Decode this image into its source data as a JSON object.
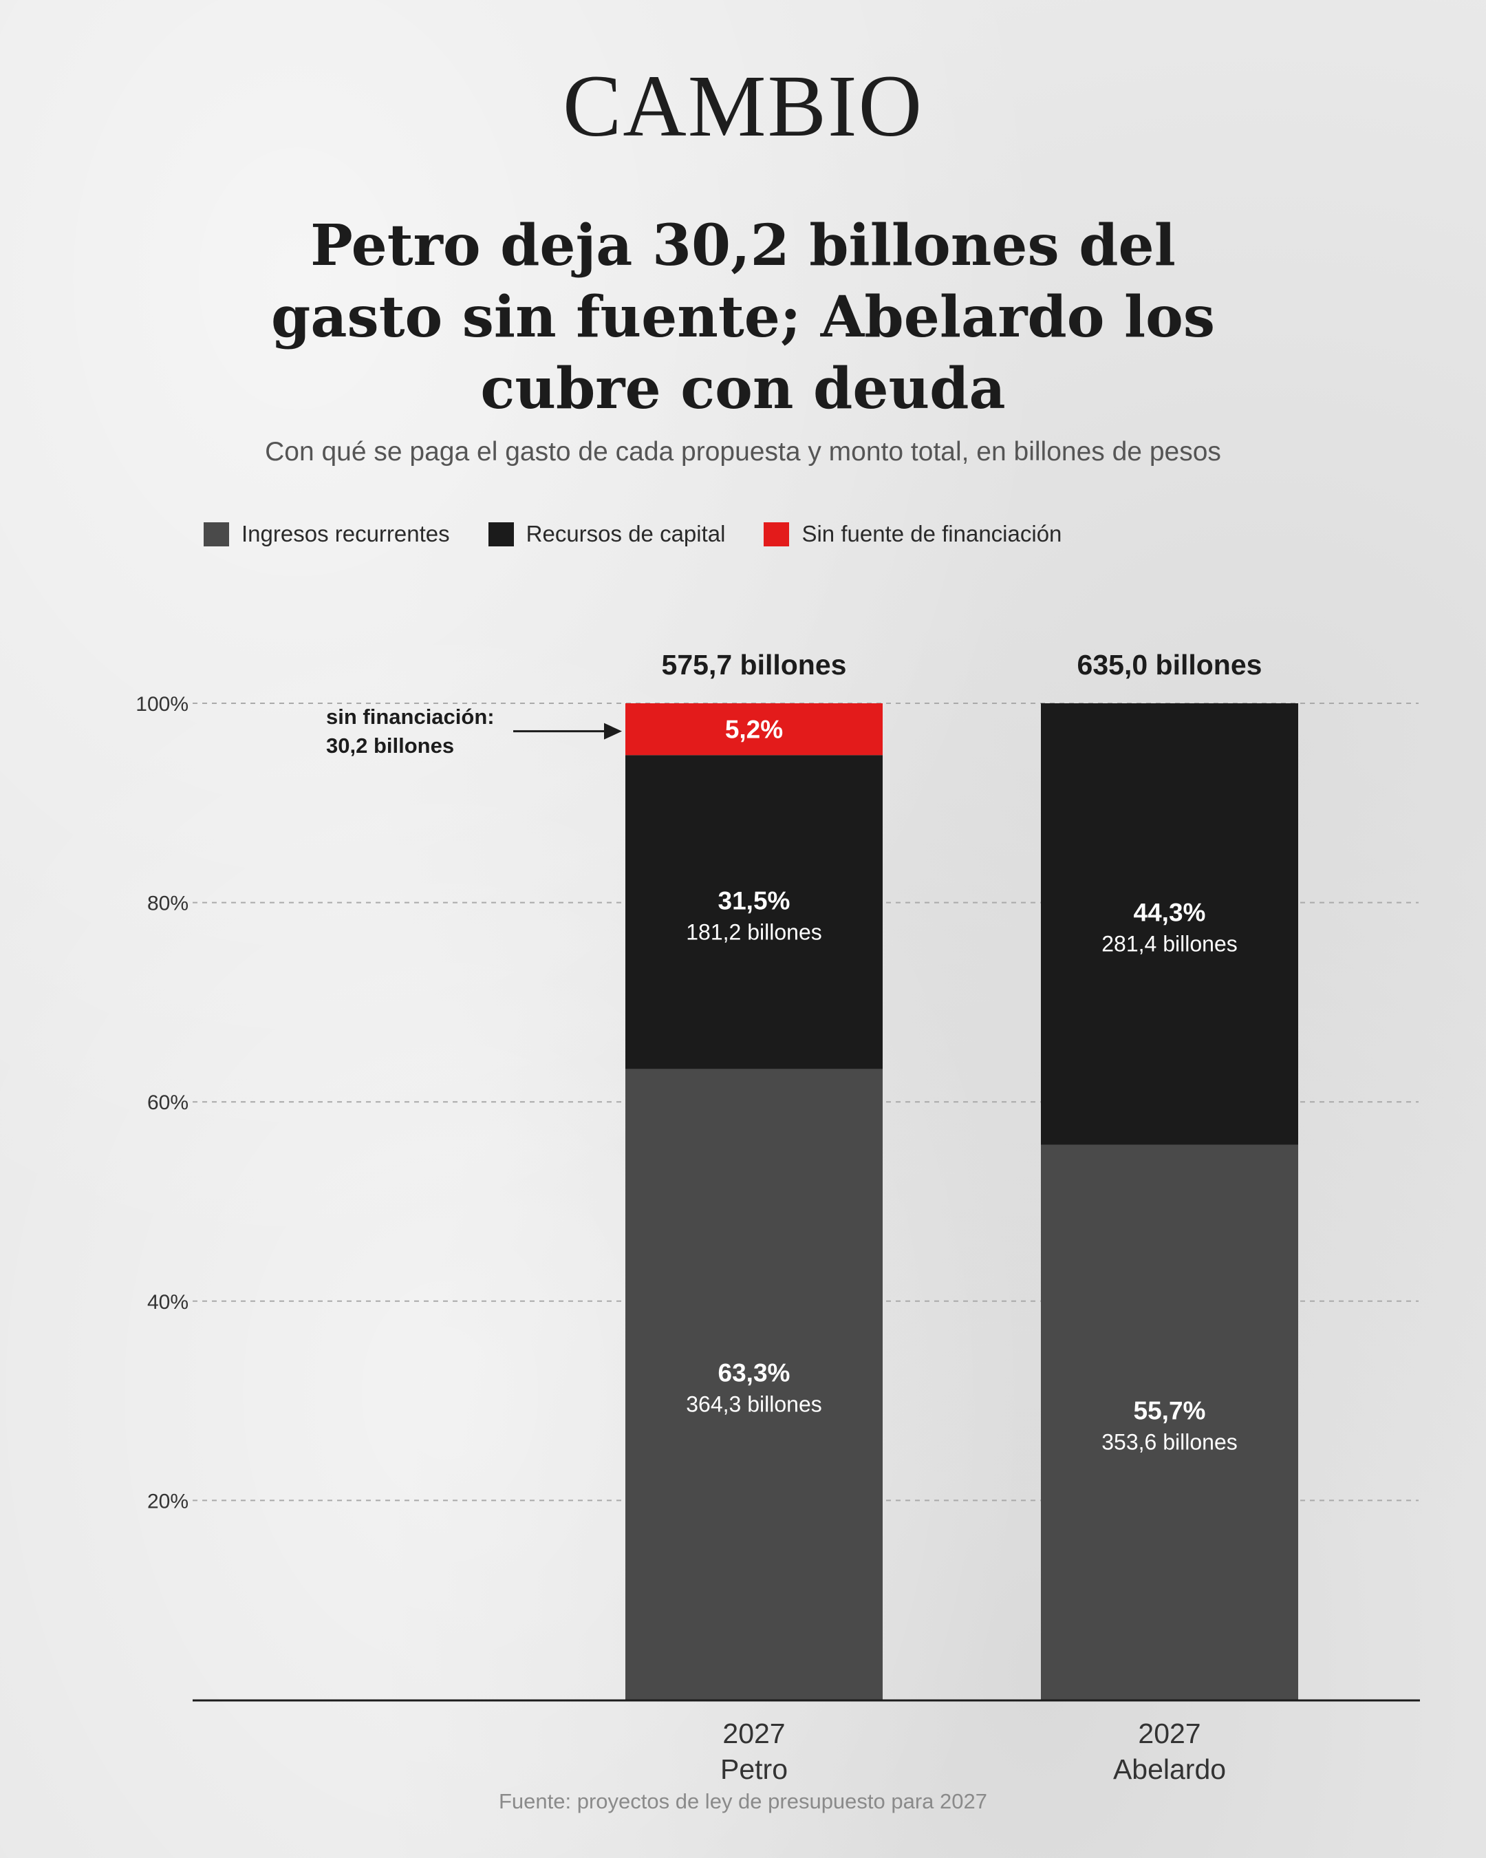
{
  "brand": {
    "logo_text": "CAMBIO"
  },
  "headline": {
    "title": "Petro deja 30,2 billones del gasto sin fuente; Abelardo los cubre con deuda",
    "subtitle": "Con qué se paga el gasto de cada propuesta y monto total, en billones de pesos"
  },
  "source": "Fuente: proyectos de ley de presupuesto para 2027",
  "colors": {
    "ingresos": "#4a4a4a",
    "capital": "#1b1b1b",
    "sin_fuente": "#e31b1b",
    "grid": "#aaaaaa",
    "axis": "#1c1c1c"
  },
  "chart_data": {
    "type": "bar",
    "stacked": true,
    "normalized_percent": true,
    "categories": [
      {
        "line1": "2027",
        "line2": "Petro"
      },
      {
        "line1": "2027",
        "line2": "Abelardo"
      }
    ],
    "totals": [
      "575,7 billones",
      "635,0 billones"
    ],
    "ylim": [
      0,
      100
    ],
    "yticks": [
      20,
      40,
      60,
      80,
      100
    ],
    "ytick_labels": [
      "20%",
      "40%",
      "60%",
      "80%",
      "100%"
    ],
    "grid": true,
    "legend_position": "top-left",
    "series": [
      {
        "name": "Ingresos recurrentes",
        "color_key": "ingresos",
        "values": [
          63.3,
          55.7
        ],
        "amounts": [
          364.3,
          353.6
        ],
        "pct_labels": [
          "63,3%",
          "55,7%"
        ],
        "amount_labels": [
          "364,3 billones",
          "353,6 billones"
        ]
      },
      {
        "name": "Recursos de capital",
        "color_key": "capital",
        "values": [
          31.5,
          44.3
        ],
        "amounts": [
          181.2,
          281.4
        ],
        "pct_labels": [
          "31,5%",
          "44,3%"
        ],
        "amount_labels": [
          "181,2 billones",
          "281,4 billones"
        ]
      },
      {
        "name": "Sin fuente de financiación",
        "color_key": "sin_fuente",
        "values": [
          5.2,
          0
        ],
        "amounts": [
          30.2,
          0
        ],
        "pct_labels": [
          "5,2%",
          ""
        ],
        "amount_labels": [
          "",
          ""
        ]
      }
    ],
    "annotation": {
      "line1": "sin financiación:",
      "line2": "30,2 billones"
    }
  }
}
